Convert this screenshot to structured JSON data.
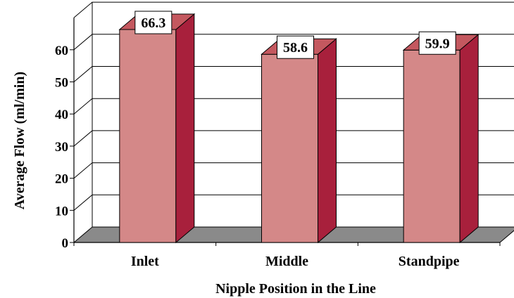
{
  "chart_data": {
    "type": "bar",
    "categories": [
      "Inlet",
      "Middle",
      "Standpipe"
    ],
    "values": [
      66.3,
      58.6,
      59.9
    ],
    "title": "",
    "xlabel": "Nipple Position in the Line",
    "ylabel": "Average Flow (ml/min)",
    "ylim": [
      0,
      70
    ],
    "yticks": [
      0,
      10,
      20,
      30,
      40,
      50,
      60
    ],
    "grid": true,
    "legend": "none",
    "colors": {
      "bar_front": "#d48888",
      "bar_side": "#a8203c",
      "bar_top": "#c4585f",
      "floor": "#8a8a8a",
      "grid": "#000000"
    }
  }
}
